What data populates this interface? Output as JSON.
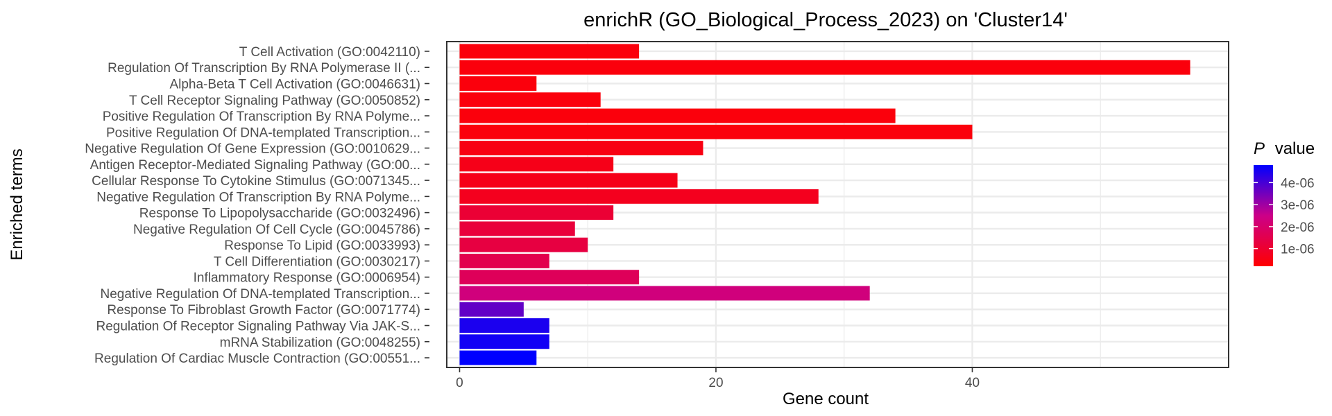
{
  "chart_data": {
    "type": "bar",
    "orientation": "horizontal",
    "title": "enrichR (GO_Biological_Process_2023) on 'Cluster14'",
    "xlabel": "Gene count",
    "ylabel": "Enriched terms",
    "xlim": [
      -1,
      60
    ],
    "xticks": [
      0,
      20,
      40
    ],
    "grid": true,
    "legend": {
      "title_italic": "P",
      "title_rest": "value",
      "placement": "right",
      "range": [
        2e-07,
        4.8e-06
      ],
      "ticks": [
        {
          "value": 1e-06,
          "label": "1e-06"
        },
        {
          "value": 2e-06,
          "label": "2e-06"
        },
        {
          "value": 3e-06,
          "label": "3e-06"
        },
        {
          "value": 4e-06,
          "label": "4e-06"
        }
      ],
      "color_low": "#ff0000",
      "color_high": "#0000ff"
    },
    "categories": [
      "T Cell Activation (GO:0042110)",
      "Regulation Of Transcription By RNA Polymerase II (...",
      "Alpha-Beta T Cell Activation (GO:0046631)",
      "T Cell Receptor Signaling Pathway (GO:0050852)",
      "Positive Regulation Of Transcription By RNA Polyme...",
      "Positive Regulation Of DNA-templated Transcription...",
      "Negative Regulation Of Gene Expression (GO:0010629...",
      "Antigen Receptor-Mediated Signaling Pathway (GO:00...",
      "Cellular Response To Cytokine Stimulus (GO:0071345...",
      "Negative Regulation Of Transcription By RNA Polyme...",
      "Response To Lipopolysaccharide (GO:0032496)",
      "Negative Regulation Of Cell Cycle (GO:0045786)",
      "Response To Lipid (GO:0033993)",
      "T Cell Differentiation (GO:0030217)",
      "Inflammatory Response (GO:0006954)",
      "Negative Regulation Of DNA-templated Transcription...",
      "Response To Fibroblast Growth Factor (GO:0071774)",
      "Regulation Of Receptor Signaling Pathway Via JAK-S...",
      "mRNA Stabilization (GO:0048255)",
      "Regulation Of Cardiac Muscle Contraction (GO:00551..."
    ],
    "values": [
      14,
      57,
      6,
      11,
      34,
      40,
      19,
      12,
      17,
      28,
      12,
      9,
      10,
      7,
      14,
      32,
      5,
      7,
      7,
      6
    ],
    "p_values": [
      4e-07,
      4e-07,
      4e-07,
      4e-07,
      4e-07,
      4e-07,
      5e-07,
      6e-07,
      6e-07,
      7e-07,
      1.1e-06,
      1.2e-06,
      1.3e-06,
      1.5e-06,
      1.7e-06,
      2.3e-06,
      3.7e-06,
      4.5e-06,
      4.6e-06,
      4.8e-06
    ]
  }
}
